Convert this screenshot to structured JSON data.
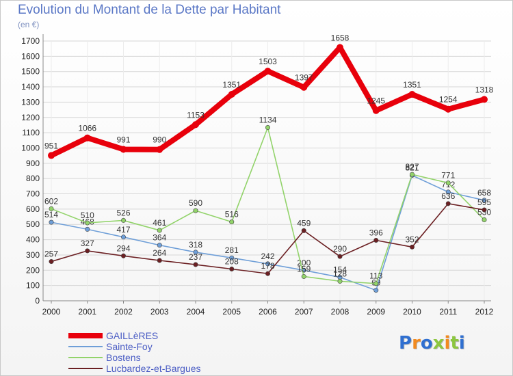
{
  "title": "Evolution du Montant de la Dette par Habitant",
  "subtitle": "(en €)",
  "logo": {
    "text": "Proxiti",
    "colors": [
      "#2f6fd0",
      "#f28a1f",
      "#2f6fd0",
      "#8cc63f",
      "#f28a1f",
      "#8cc63f",
      "#2f6fd0"
    ]
  },
  "chart_data": {
    "type": "line",
    "x": [
      "2000",
      "2001",
      "2002",
      "2003",
      "2004",
      "2005",
      "2006",
      "2007",
      "2008",
      "2009",
      "2010",
      "2011",
      "2012"
    ],
    "ylim": [
      0,
      1700
    ],
    "yticks": [
      0,
      100,
      200,
      300,
      400,
      500,
      600,
      700,
      800,
      900,
      1000,
      1100,
      1200,
      1300,
      1400,
      1500,
      1600,
      1700
    ],
    "grid": true,
    "legend_position": "bottom-left",
    "series": [
      {
        "name": "GAILLèRES",
        "color": "#e8000b",
        "values": [
          951,
          1066,
          991,
          990,
          1153,
          1351,
          1503,
          1397,
          1658,
          1245,
          1351,
          1254,
          1318
        ]
      },
      {
        "name": "Sainte-Foy",
        "color": "#6f9fd8",
        "values": [
          514,
          468,
          417,
          364,
          318,
          281,
          242,
          200,
          154,
          69,
          821,
          712,
          658
        ]
      },
      {
        "name": "Bostens",
        "color": "#92d36a",
        "values": [
          602,
          510,
          526,
          461,
          590,
          516,
          1134,
          159,
          128,
          113,
          827,
          771,
          530
        ]
      },
      {
        "name": "Lucbardez-et-Bargues",
        "color": "#6b1f22",
        "values": [
          257,
          327,
          294,
          264,
          237,
          208,
          178,
          459,
          290,
          396,
          352,
          636,
          595
        ]
      }
    ]
  }
}
